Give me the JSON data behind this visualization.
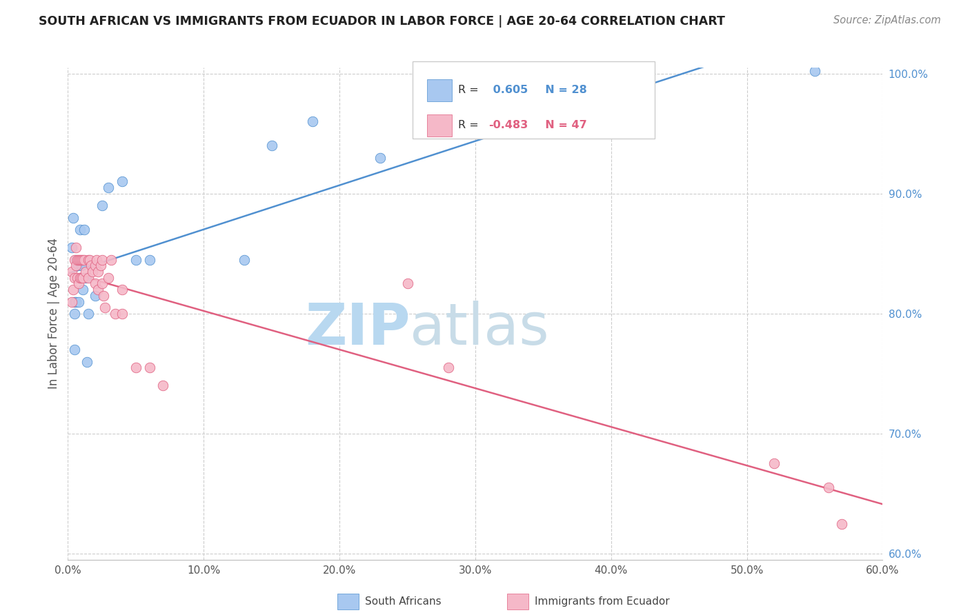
{
  "title": "SOUTH AFRICAN VS IMMIGRANTS FROM ECUADOR IN LABOR FORCE | AGE 20-64 CORRELATION CHART",
  "source": "Source: ZipAtlas.com",
  "ylabel": "In Labor Force | Age 20-64",
  "legend_label_blue": "South Africans",
  "legend_label_pink": "Immigrants from Ecuador",
  "R_blue": 0.605,
  "N_blue": 28,
  "R_pink": -0.483,
  "N_pink": 47,
  "xlim": [
    0.0,
    0.6
  ],
  "ylim": [
    0.595,
    1.005
  ],
  "xticks": [
    0.0,
    0.1,
    0.2,
    0.3,
    0.4,
    0.5,
    0.6
  ],
  "yticks": [
    0.6,
    0.7,
    0.8,
    0.9,
    1.0
  ],
  "blue_color": "#A8C8F0",
  "blue_line_color": "#5090D0",
  "pink_color": "#F5B8C8",
  "pink_line_color": "#E06080",
  "blue_dots_x": [
    0.003,
    0.004,
    0.005,
    0.005,
    0.005,
    0.006,
    0.006,
    0.007,
    0.008,
    0.009,
    0.009,
    0.01,
    0.011,
    0.012,
    0.013,
    0.014,
    0.015,
    0.02,
    0.025,
    0.03,
    0.04,
    0.05,
    0.06,
    0.13,
    0.15,
    0.18,
    0.23,
    0.55
  ],
  "blue_dots_y": [
    0.855,
    0.88,
    0.81,
    0.8,
    0.77,
    0.845,
    0.81,
    0.84,
    0.81,
    0.87,
    0.83,
    0.84,
    0.82,
    0.87,
    0.83,
    0.76,
    0.8,
    0.815,
    0.89,
    0.905,
    0.91,
    0.845,
    0.845,
    0.845,
    0.94,
    0.96,
    0.93,
    1.002
  ],
  "pink_dots_x": [
    0.003,
    0.003,
    0.004,
    0.005,
    0.005,
    0.006,
    0.006,
    0.007,
    0.007,
    0.008,
    0.008,
    0.009,
    0.009,
    0.01,
    0.01,
    0.011,
    0.011,
    0.012,
    0.013,
    0.015,
    0.015,
    0.016,
    0.017,
    0.018,
    0.02,
    0.02,
    0.021,
    0.022,
    0.022,
    0.024,
    0.025,
    0.025,
    0.026,
    0.027,
    0.03,
    0.032,
    0.035,
    0.04,
    0.04,
    0.05,
    0.06,
    0.07,
    0.25,
    0.28,
    0.52,
    0.56,
    0.57
  ],
  "pink_dots_y": [
    0.835,
    0.81,
    0.82,
    0.845,
    0.83,
    0.855,
    0.84,
    0.845,
    0.83,
    0.845,
    0.825,
    0.845,
    0.83,
    0.845,
    0.83,
    0.845,
    0.83,
    0.845,
    0.835,
    0.845,
    0.83,
    0.845,
    0.84,
    0.835,
    0.84,
    0.825,
    0.845,
    0.835,
    0.82,
    0.84,
    0.825,
    0.845,
    0.815,
    0.805,
    0.83,
    0.845,
    0.8,
    0.82,
    0.8,
    0.755,
    0.755,
    0.74,
    0.825,
    0.755,
    0.675,
    0.655,
    0.625
  ],
  "watermark_zip_color": "#B8D8F0",
  "watermark_atlas_color": "#C8DCE8",
  "background_color": "#ffffff",
  "grid_color": "#cccccc"
}
